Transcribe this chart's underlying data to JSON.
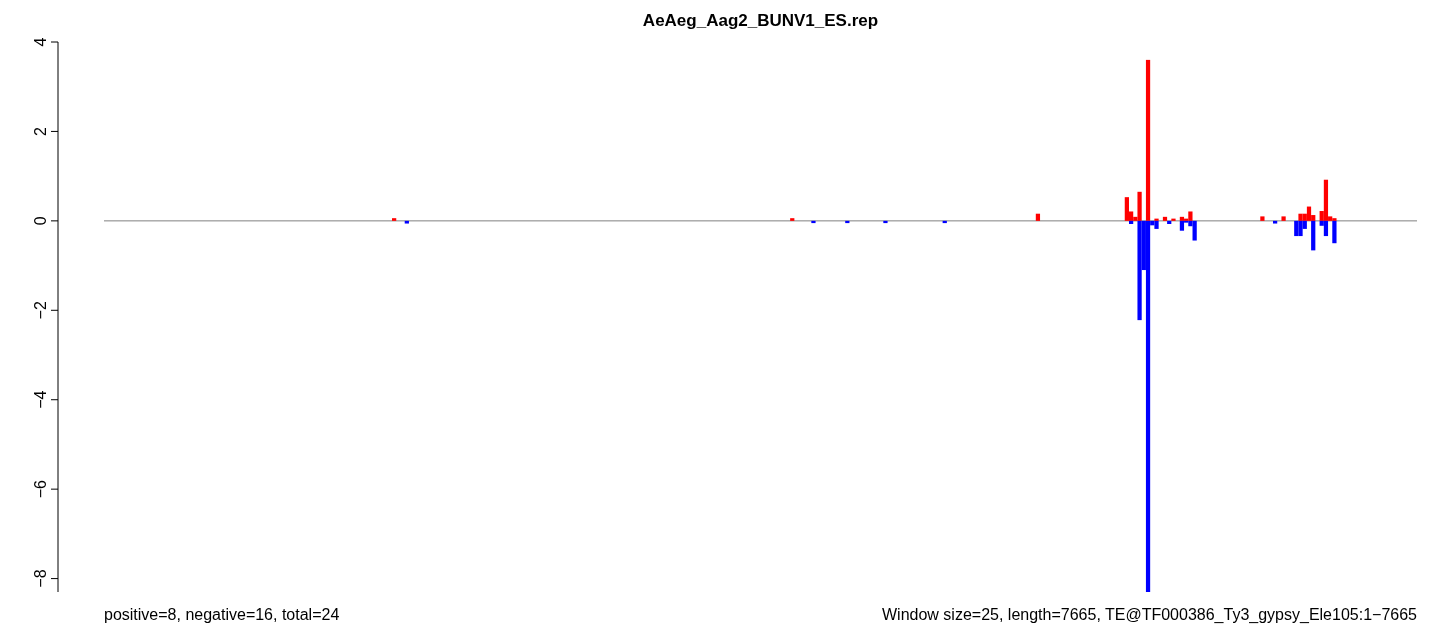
{
  "chart_data": {
    "type": "bar",
    "title": "AeAeg_Aag2_BUNV1_ES.rep",
    "annotations": [
      "positive=8, negative=16, total=24",
      "Window size=25, length=7665, TE@TF000386_Ty3_gypsy_Ele105:1−7665"
    ],
    "categories": [
      null,
      null,
      null,
      null,
      null,
      null,
      null,
      null,
      null,
      null,
      null,
      null,
      null,
      null,
      null,
      null,
      null,
      null,
      null,
      null,
      null,
      null,
      null,
      null,
      null,
      null,
      null,
      null,
      null,
      null,
      null,
      null,
      null,
      null,
      null,
      null,
      null,
      null,
      null,
      null,
      null,
      null,
      null,
      null,
      null,
      null,
      null,
      null,
      null,
      null,
      null,
      null,
      null,
      null,
      null,
      null,
      null,
      null,
      null,
      null,
      null,
      null,
      null,
      null,
      null,
      null,
      null,
      null,
      null,
      null,
      null,
      null,
      null,
      null,
      null,
      null,
      null,
      null,
      null,
      null,
      null,
      null,
      null,
      null,
      null,
      null,
      null,
      null,
      null,
      null,
      null,
      null,
      null,
      null,
      null,
      null,
      null,
      null,
      null,
      null,
      null,
      null,
      null,
      null,
      null,
      null,
      null,
      null,
      null,
      null,
      null,
      null,
      null,
      null,
      null,
      null,
      null,
      null,
      null,
      null,
      null,
      null,
      null,
      null,
      null,
      null,
      null,
      null,
      null,
      null,
      null,
      null,
      null,
      null,
      null,
      null,
      null,
      null,
      null,
      null,
      null,
      null,
      null,
      null,
      null,
      null,
      null,
      null,
      null,
      null,
      null,
      null,
      null,
      null,
      null,
      null,
      null,
      null,
      null,
      null,
      null,
      null,
      null,
      null,
      null,
      null,
      null,
      null,
      null,
      null,
      null,
      null,
      null,
      null,
      null,
      null,
      null,
      null,
      null,
      null,
      null,
      null,
      null,
      null,
      null,
      null,
      null,
      null,
      null,
      null,
      null,
      null,
      null,
      null,
      null,
      null,
      null,
      null,
      null,
      null,
      null,
      null,
      null,
      null,
      null,
      null,
      null,
      null,
      null,
      null,
      null,
      null,
      null,
      null,
      null,
      null,
      null,
      null,
      null,
      null,
      null,
      null,
      null,
      null,
      null,
      null,
      null,
      null,
      null,
      null,
      null,
      null,
      null,
      null,
      null,
      null,
      null,
      null,
      null,
      null,
      null,
      null,
      null,
      null,
      null,
      null,
      null,
      null,
      null,
      null,
      null,
      null,
      null,
      null,
      null,
      null,
      null,
      null,
      null,
      null,
      null,
      null,
      null,
      null,
      null,
      null,
      null,
      null,
      null,
      null,
      null,
      null,
      null,
      null,
      null,
      null,
      null,
      null,
      null,
      null,
      null,
      null,
      null,
      null,
      null,
      null,
      null,
      null,
      null,
      null,
      null,
      null,
      null,
      null,
      null,
      null,
      null,
      null,
      null,
      null,
      null,
      null,
      null,
      null,
      null,
      null,
      null,
      null,
      null,
      null
    ],
    "series": [
      {
        "color": "#ff0000",
        "values": [
          0,
          0,
          0,
          0,
          0,
          0,
          0,
          0,
          0,
          0,
          0,
          0,
          0,
          0,
          0,
          0,
          0,
          0,
          0,
          0,
          0,
          0,
          0,
          0,
          0,
          0,
          0,
          0,
          0,
          0,
          0,
          0,
          0,
          0,
          0,
          0,
          0,
          0,
          0,
          0,
          0,
          0,
          0,
          0,
          0,
          0,
          0,
          0,
          0,
          0,
          0,
          0,
          0,
          0,
          0,
          0,
          0,
          0,
          0,
          0,
          0,
          0,
          0,
          0,
          0,
          0,
          0,
          0,
          0.06,
          0,
          0,
          0,
          0,
          0,
          0,
          0,
          0,
          0,
          0,
          0,
          0,
          0,
          0,
          0,
          0,
          0,
          0,
          0,
          0,
          0,
          0,
          0,
          0,
          0,
          0,
          0,
          0,
          0,
          0,
          0,
          0,
          0,
          0,
          0,
          0,
          0,
          0,
          0,
          0,
          0,
          0,
          0,
          0,
          0,
          0,
          0,
          0,
          0,
          0,
          0,
          0,
          0,
          0,
          0,
          0,
          0,
          0,
          0,
          0,
          0,
          0,
          0,
          0,
          0,
          0,
          0,
          0,
          0,
          0,
          0,
          0,
          0,
          0,
          0,
          0,
          0,
          0,
          0,
          0,
          0,
          0,
          0,
          0,
          0,
          0,
          0,
          0,
          0,
          0,
          0,
          0,
          0,
          0.06,
          0,
          0,
          0,
          0,
          0,
          0,
          0,
          0,
          0,
          0,
          0,
          0,
          0,
          0,
          0,
          0,
          0,
          0,
          0,
          0,
          0,
          0,
          0,
          0,
          0,
          0,
          0,
          0,
          0,
          0,
          0,
          0,
          0,
          0,
          0,
          0,
          0,
          0,
          0,
          0,
          0,
          0,
          0,
          0,
          0,
          0,
          0,
          0,
          0,
          0,
          0,
          0,
          0,
          0,
          0,
          0,
          0,
          0.16,
          0,
          0,
          0,
          0,
          0,
          0,
          0,
          0,
          0,
          0,
          0,
          0,
          0,
          0,
          0,
          0,
          0,
          0,
          0,
          0,
          0.53,
          0.21,
          0.09,
          0.65,
          0,
          3.6,
          0,
          0.05,
          0,
          0.09,
          0,
          0.05,
          0,
          0.09,
          0.05,
          0.21,
          0,
          0,
          0,
          0,
          0,
          0,
          0,
          0,
          0,
          0,
          0,
          0,
          0,
          0,
          0,
          0,
          0.1,
          0,
          0,
          0,
          0,
          0.1,
          0,
          0,
          0,
          0.16,
          0.16,
          0.32,
          0.13,
          0,
          0.22,
          0.92,
          0.1,
          0.06,
          0,
          0,
          0,
          0,
          0,
          0,
          0,
          0,
          0,
          0,
          0,
          0,
          0,
          0,
          0,
          0,
          0,
          0,
          0
        ]
      },
      {
        "color": "#0000ff",
        "values": [
          0,
          0,
          0,
          0,
          0,
          0,
          0,
          0,
          0,
          0,
          0,
          0,
          0,
          0,
          0,
          0,
          0,
          0,
          0,
          0,
          0,
          0,
          0,
          0,
          0,
          0,
          0,
          0,
          0,
          0,
          0,
          0,
          0,
          0,
          0,
          0,
          0,
          0,
          0,
          0,
          0,
          0,
          0,
          0,
          0,
          0,
          0,
          0,
          0,
          0,
          0,
          0,
          0,
          0,
          0,
          0,
          0,
          0,
          0,
          0,
          0,
          0,
          0,
          0,
          0,
          0,
          0,
          0,
          0,
          0,
          0,
          -0.06,
          0,
          0,
          0,
          0,
          0,
          0,
          0,
          0,
          0,
          0,
          0,
          0,
          0,
          0,
          0,
          0,
          0,
          0,
          0,
          0,
          0,
          0,
          0,
          0,
          0,
          0,
          0,
          0,
          0,
          0,
          0,
          0,
          0,
          0,
          0,
          0,
          0,
          0,
          0,
          0,
          0,
          0,
          0,
          0,
          0,
          0,
          0,
          0,
          0,
          0,
          0,
          0,
          0,
          0,
          0,
          0,
          0,
          0,
          0,
          0,
          0,
          0,
          0,
          0,
          0,
          0,
          0,
          0,
          0,
          0,
          0,
          0,
          0,
          0,
          0,
          0,
          0,
          0,
          0,
          0,
          0,
          0,
          0,
          0,
          0,
          0,
          0,
          0,
          0,
          0,
          0,
          0,
          0,
          0,
          0,
          -0.05,
          0,
          0,
          0,
          0,
          0,
          0,
          0,
          -0.05,
          0,
          0,
          0,
          0,
          0,
          0,
          0,
          0,
          -0.05,
          0,
          0,
          0,
          0,
          0,
          0,
          0,
          0,
          0,
          0,
          0,
          0,
          0,
          -0.05,
          0,
          0,
          0,
          0,
          0,
          0,
          0,
          0,
          0,
          0,
          0,
          0,
          0,
          0,
          0,
          0,
          0,
          0,
          0,
          0,
          0,
          0,
          0,
          0,
          0,
          0,
          0,
          0,
          0,
          0,
          0,
          0,
          0,
          0,
          0,
          0,
          0,
          0,
          0,
          0,
          0,
          0,
          0,
          -0.07,
          0,
          -2.22,
          -1.1,
          -8.3,
          -0.1,
          -0.18,
          0,
          0,
          -0.07,
          0,
          0,
          -0.22,
          -0.04,
          -0.12,
          -0.44,
          0,
          0,
          0,
          0,
          0,
          0,
          0,
          0,
          0,
          0,
          0,
          0,
          0,
          0,
          0,
          0,
          0,
          0,
          -0.06,
          0,
          0,
          0,
          0,
          -0.34,
          -0.34,
          -0.18,
          0,
          -0.66,
          0,
          -0.11,
          -0.34,
          0,
          -0.5,
          0,
          0,
          0,
          0,
          0,
          0,
          0,
          0,
          0,
          0,
          0,
          0,
          0,
          0,
          0,
          0,
          0,
          0,
          0
        ]
      }
    ],
    "ylim": [
      -8.3,
      4
    ],
    "yticks": [
      {
        "value": -8,
        "label": "−8"
      },
      {
        "value": -6,
        "label": "−6"
      },
      {
        "value": -4,
        "label": "−4"
      },
      {
        "value": -2,
        "label": "−2"
      },
      0,
      2,
      4
    ],
    "ref_lines": [
      {
        "axis": "y",
        "value": 0,
        "color": "#808080"
      }
    ],
    "tick_labels": "y",
    "grid": false,
    "legend": false
  }
}
